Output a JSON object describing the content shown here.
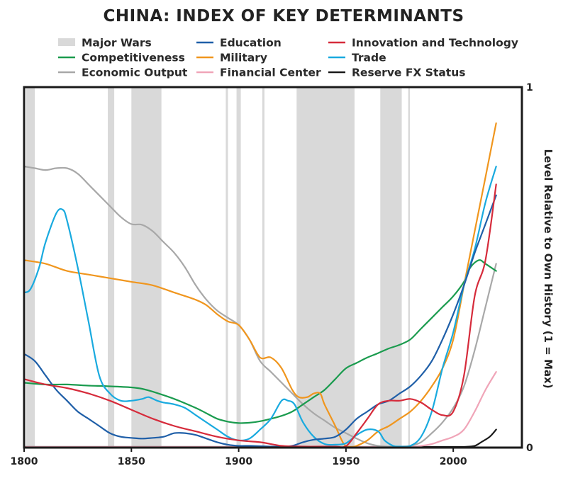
{
  "chart_data": {
    "type": "line",
    "title": "CHINA: INDEX OF KEY DETERMINANTS",
    "xlabel": "",
    "ylabel": "Level Relative to Own History (1 = Max)",
    "xlim": [
      1800,
      2032
    ],
    "ylim": [
      0,
      1
    ],
    "x_ticks": [
      "1800",
      "1850",
      "1900",
      "1950",
      "2000"
    ],
    "y_ticks": [
      "0",
      "1"
    ],
    "legend_position": "top",
    "shaded_label": "Major Wars",
    "shaded_color": "#d9d9d9",
    "major_wars": [
      [
        1801,
        1805
      ],
      [
        1839,
        1842
      ],
      [
        1850,
        1864
      ],
      [
        1894,
        1895
      ],
      [
        1899,
        1901
      ],
      [
        1911,
        1912
      ],
      [
        1927,
        1937
      ],
      [
        1937,
        1954
      ],
      [
        1966,
        1976
      ],
      [
        1979,
        1979.8
      ]
    ],
    "series": [
      {
        "name": "Education",
        "color": "#1f5fa8",
        "points": [
          [
            1800,
            0.26
          ],
          [
            1805,
            0.24
          ],
          [
            1810,
            0.2
          ],
          [
            1815,
            0.16
          ],
          [
            1820,
            0.13
          ],
          [
            1825,
            0.1
          ],
          [
            1830,
            0.08
          ],
          [
            1835,
            0.06
          ],
          [
            1840,
            0.04
          ],
          [
            1845,
            0.03
          ],
          [
            1850,
            0.027
          ],
          [
            1855,
            0.025
          ],
          [
            1860,
            0.027
          ],
          [
            1865,
            0.03
          ],
          [
            1870,
            0.04
          ],
          [
            1875,
            0.04
          ],
          [
            1880,
            0.035
          ],
          [
            1885,
            0.025
          ],
          [
            1890,
            0.015
          ],
          [
            1895,
            0.008
          ],
          [
            1900,
            0.005
          ],
          [
            1905,
            0.005
          ],
          [
            1910,
            0.004
          ],
          [
            1915,
            0.003
          ],
          [
            1920,
            0.003
          ],
          [
            1925,
            0.005
          ],
          [
            1930,
            0.015
          ],
          [
            1935,
            0.022
          ],
          [
            1940,
            0.025
          ],
          [
            1945,
            0.03
          ],
          [
            1950,
            0.05
          ],
          [
            1955,
            0.08
          ],
          [
            1960,
            0.1
          ],
          [
            1965,
            0.12
          ],
          [
            1970,
            0.13
          ],
          [
            1975,
            0.15
          ],
          [
            1980,
            0.17
          ],
          [
            1985,
            0.2
          ],
          [
            1990,
            0.24
          ],
          [
            1995,
            0.3
          ],
          [
            2000,
            0.37
          ],
          [
            2005,
            0.45
          ],
          [
            2010,
            0.54
          ],
          [
            2015,
            0.62
          ],
          [
            2020,
            0.7
          ]
        ]
      },
      {
        "name": "Innovation and Technology",
        "color": "#d62b3b",
        "points": [
          [
            1800,
            0.19
          ],
          [
            1810,
            0.175
          ],
          [
            1820,
            0.165
          ],
          [
            1830,
            0.15
          ],
          [
            1840,
            0.13
          ],
          [
            1850,
            0.105
          ],
          [
            1860,
            0.08
          ],
          [
            1870,
            0.06
          ],
          [
            1880,
            0.045
          ],
          [
            1890,
            0.03
          ],
          [
            1900,
            0.02
          ],
          [
            1910,
            0.015
          ],
          [
            1920,
            0.005
          ],
          [
            1930,
            0.003
          ],
          [
            1940,
            0.003
          ],
          [
            1945,
            0.003
          ],
          [
            1950,
            0.004
          ],
          [
            1955,
            0.04
          ],
          [
            1960,
            0.08
          ],
          [
            1965,
            0.12
          ],
          [
            1970,
            0.13
          ],
          [
            1975,
            0.13
          ],
          [
            1980,
            0.135
          ],
          [
            1985,
            0.125
          ],
          [
            1990,
            0.105
          ],
          [
            1995,
            0.09
          ],
          [
            2000,
            0.1
          ],
          [
            2005,
            0.2
          ],
          [
            2010,
            0.42
          ],
          [
            2015,
            0.52
          ],
          [
            2020,
            0.73
          ]
        ]
      },
      {
        "name": "Competitiveness",
        "color": "#1a9b4e",
        "points": [
          [
            1800,
            0.18
          ],
          [
            1810,
            0.175
          ],
          [
            1820,
            0.175
          ],
          [
            1830,
            0.172
          ],
          [
            1840,
            0.17
          ],
          [
            1850,
            0.167
          ],
          [
            1855,
            0.163
          ],
          [
            1860,
            0.155
          ],
          [
            1870,
            0.135
          ],
          [
            1880,
            0.11
          ],
          [
            1885,
            0.095
          ],
          [
            1890,
            0.08
          ],
          [
            1895,
            0.072
          ],
          [
            1900,
            0.068
          ],
          [
            1905,
            0.069
          ],
          [
            1910,
            0.073
          ],
          [
            1915,
            0.08
          ],
          [
            1920,
            0.088
          ],
          [
            1925,
            0.1
          ],
          [
            1930,
            0.12
          ],
          [
            1935,
            0.14
          ],
          [
            1940,
            0.16
          ],
          [
            1945,
            0.19
          ],
          [
            1950,
            0.22
          ],
          [
            1955,
            0.235
          ],
          [
            1960,
            0.25
          ],
          [
            1965,
            0.262
          ],
          [
            1970,
            0.275
          ],
          [
            1975,
            0.285
          ],
          [
            1980,
            0.3
          ],
          [
            1985,
            0.33
          ],
          [
            1990,
            0.36
          ],
          [
            1995,
            0.39
          ],
          [
            2000,
            0.42
          ],
          [
            2005,
            0.46
          ],
          [
            2008,
            0.5
          ],
          [
            2012,
            0.52
          ],
          [
            2015,
            0.51
          ],
          [
            2020,
            0.49
          ]
        ]
      },
      {
        "name": "Military",
        "color": "#f0961e",
        "points": [
          [
            1800,
            0.52
          ],
          [
            1810,
            0.51
          ],
          [
            1820,
            0.49
          ],
          [
            1830,
            0.48
          ],
          [
            1840,
            0.47
          ],
          [
            1850,
            0.46
          ],
          [
            1860,
            0.45
          ],
          [
            1870,
            0.43
          ],
          [
            1880,
            0.41
          ],
          [
            1885,
            0.395
          ],
          [
            1890,
            0.37
          ],
          [
            1895,
            0.35
          ],
          [
            1900,
            0.34
          ],
          [
            1905,
            0.3
          ],
          [
            1910,
            0.25
          ],
          [
            1915,
            0.25
          ],
          [
            1920,
            0.22
          ],
          [
            1925,
            0.16
          ],
          [
            1928,
            0.14
          ],
          [
            1932,
            0.14
          ],
          [
            1935,
            0.15
          ],
          [
            1938,
            0.15
          ],
          [
            1940,
            0.12
          ],
          [
            1945,
            0.06
          ],
          [
            1949,
            0.01
          ],
          [
            1952,
            0.0
          ],
          [
            1955,
            0.005
          ],
          [
            1960,
            0.02
          ],
          [
            1965,
            0.045
          ],
          [
            1970,
            0.06
          ],
          [
            1975,
            0.08
          ],
          [
            1980,
            0.1
          ],
          [
            1985,
            0.13
          ],
          [
            1990,
            0.17
          ],
          [
            1995,
            0.22
          ],
          [
            2000,
            0.3
          ],
          [
            2005,
            0.45
          ],
          [
            2010,
            0.6
          ],
          [
            2015,
            0.75
          ],
          [
            2020,
            0.9
          ]
        ]
      },
      {
        "name": "Trade",
        "color": "#19aadf",
        "points": [
          [
            1800,
            0.43
          ],
          [
            1803,
            0.44
          ],
          [
            1807,
            0.5
          ],
          [
            1810,
            0.57
          ],
          [
            1815,
            0.65
          ],
          [
            1818,
            0.66
          ],
          [
            1820,
            0.63
          ],
          [
            1825,
            0.5
          ],
          [
            1830,
            0.35
          ],
          [
            1835,
            0.2
          ],
          [
            1840,
            0.15
          ],
          [
            1845,
            0.13
          ],
          [
            1850,
            0.13
          ],
          [
            1855,
            0.135
          ],
          [
            1858,
            0.14
          ],
          [
            1862,
            0.13
          ],
          [
            1865,
            0.125
          ],
          [
            1870,
            0.12
          ],
          [
            1875,
            0.11
          ],
          [
            1880,
            0.09
          ],
          [
            1885,
            0.07
          ],
          [
            1890,
            0.05
          ],
          [
            1895,
            0.03
          ],
          [
            1900,
            0.02
          ],
          [
            1905,
            0.025
          ],
          [
            1910,
            0.05
          ],
          [
            1915,
            0.08
          ],
          [
            1920,
            0.13
          ],
          [
            1923,
            0.13
          ],
          [
            1926,
            0.12
          ],
          [
            1930,
            0.07
          ],
          [
            1935,
            0.03
          ],
          [
            1940,
            0.01
          ],
          [
            1945,
            0.008
          ],
          [
            1950,
            0.012
          ],
          [
            1955,
            0.035
          ],
          [
            1960,
            0.05
          ],
          [
            1965,
            0.045
          ],
          [
            1968,
            0.02
          ],
          [
            1972,
            0.005
          ],
          [
            1975,
            0.003
          ],
          [
            1980,
            0.005
          ],
          [
            1985,
            0.03
          ],
          [
            1990,
            0.1
          ],
          [
            1995,
            0.22
          ],
          [
            2000,
            0.32
          ],
          [
            2005,
            0.45
          ],
          [
            2010,
            0.55
          ],
          [
            2015,
            0.68
          ],
          [
            2020,
            0.78
          ]
        ]
      },
      {
        "name": "Economic Output",
        "color": "#a8a8a8",
        "points": [
          [
            1800,
            0.78
          ],
          [
            1805,
            0.775
          ],
          [
            1810,
            0.77
          ],
          [
            1815,
            0.775
          ],
          [
            1820,
            0.775
          ],
          [
            1825,
            0.76
          ],
          [
            1830,
            0.73
          ],
          [
            1835,
            0.7
          ],
          [
            1840,
            0.67
          ],
          [
            1845,
            0.64
          ],
          [
            1850,
            0.62
          ],
          [
            1855,
            0.618
          ],
          [
            1860,
            0.6
          ],
          [
            1865,
            0.57
          ],
          [
            1870,
            0.54
          ],
          [
            1875,
            0.5
          ],
          [
            1880,
            0.45
          ],
          [
            1885,
            0.41
          ],
          [
            1890,
            0.38
          ],
          [
            1895,
            0.36
          ],
          [
            1900,
            0.34
          ],
          [
            1905,
            0.3
          ],
          [
            1910,
            0.24
          ],
          [
            1915,
            0.21
          ],
          [
            1920,
            0.18
          ],
          [
            1925,
            0.15
          ],
          [
            1930,
            0.12
          ],
          [
            1935,
            0.095
          ],
          [
            1940,
            0.075
          ],
          [
            1945,
            0.055
          ],
          [
            1950,
            0.04
          ],
          [
            1955,
            0.025
          ],
          [
            1960,
            0.012
          ],
          [
            1965,
            0.005
          ],
          [
            1970,
            0.003
          ],
          [
            1975,
            0.003
          ],
          [
            1980,
            0.005
          ],
          [
            1985,
            0.015
          ],
          [
            1990,
            0.04
          ],
          [
            1995,
            0.07
          ],
          [
            2000,
            0.11
          ],
          [
            2005,
            0.17
          ],
          [
            2010,
            0.27
          ],
          [
            2015,
            0.39
          ],
          [
            2020,
            0.51
          ]
        ]
      },
      {
        "name": "Financial Center",
        "color": "#f0a5b8",
        "points": [
          [
            1800,
            0.0
          ],
          [
            1900,
            0.0
          ],
          [
            1950,
            0.0
          ],
          [
            1975,
            0.0
          ],
          [
            1980,
            0.002
          ],
          [
            1985,
            0.005
          ],
          [
            1990,
            0.01
          ],
          [
            1995,
            0.02
          ],
          [
            2000,
            0.03
          ],
          [
            2005,
            0.05
          ],
          [
            2010,
            0.1
          ],
          [
            2015,
            0.16
          ],
          [
            2020,
            0.21
          ]
        ]
      },
      {
        "name": "Reserve FX Status",
        "color": "#1a1a1a",
        "points": [
          [
            1800,
            0.0
          ],
          [
            1950,
            0.0
          ],
          [
            2000,
            0.0
          ],
          [
            2005,
            0.002
          ],
          [
            2010,
            0.005
          ],
          [
            2013,
            0.015
          ],
          [
            2017,
            0.03
          ],
          [
            2020,
            0.05
          ]
        ]
      }
    ]
  }
}
